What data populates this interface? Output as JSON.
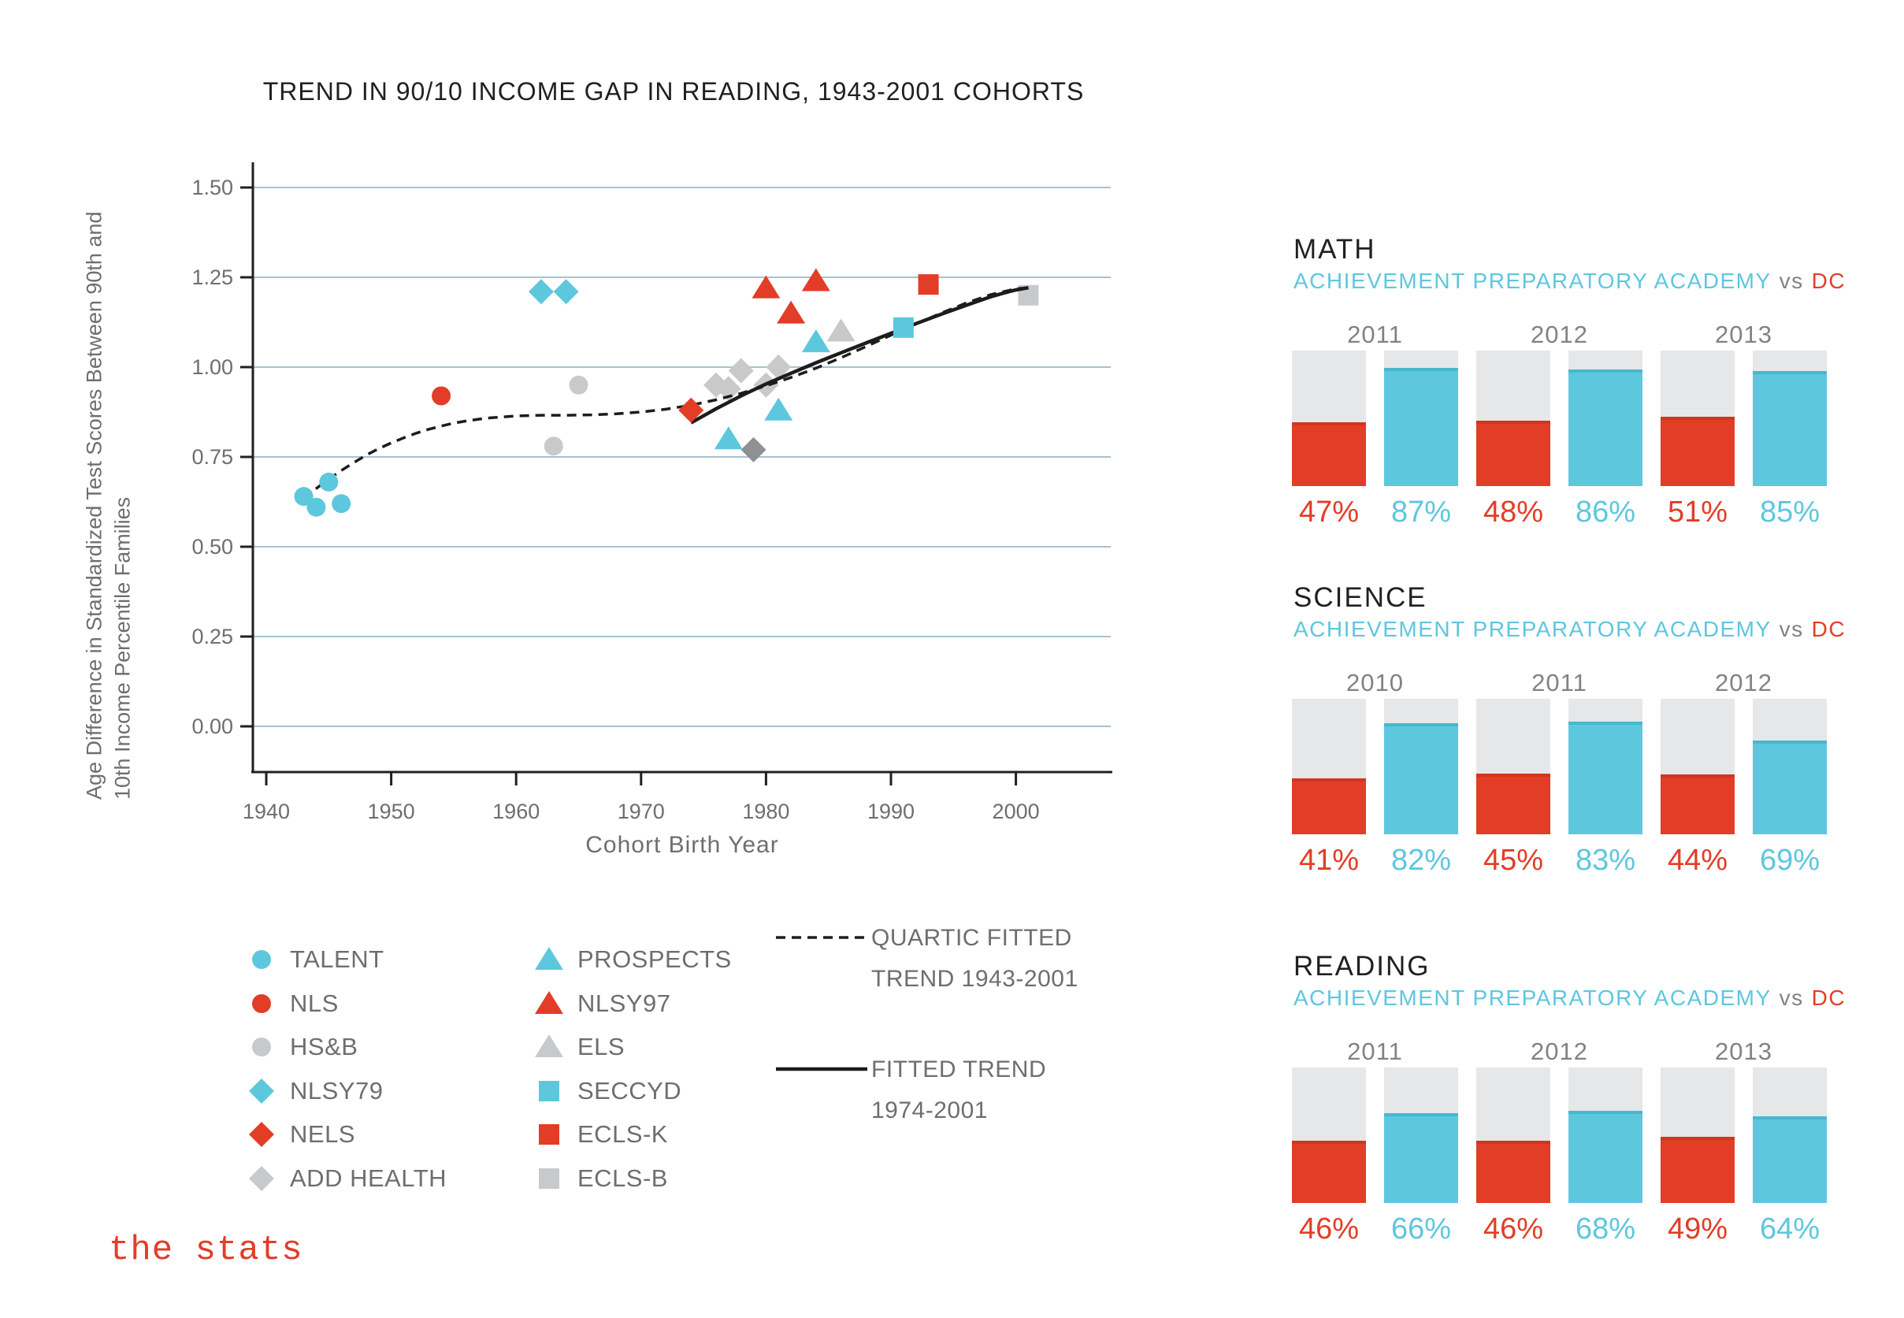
{
  "logo": {
    "text": "the stats"
  },
  "colors": {
    "red": "#e23d27",
    "blue": "#5dc7de",
    "light_gray": "#c8c9cb",
    "dark_gray": "#8f9093",
    "bar_background": "#e5e7e9",
    "gridline": "#a8c2cc",
    "axis_black": "#231f20",
    "label_gray": "#6d6e71",
    "year_gray": "#808285"
  },
  "scatter_legend": {
    "column1": [
      {
        "label": "TALENT",
        "marker": "circle",
        "color_key": "blue"
      },
      {
        "label": "NLS",
        "marker": "circle",
        "color_key": "red"
      },
      {
        "label": "HS&B",
        "marker": "circle",
        "color_key": "light_gray"
      },
      {
        "label": "NLSY79",
        "marker": "diamond",
        "color_key": "blue"
      },
      {
        "label": "NELS",
        "marker": "diamond",
        "color_key": "red"
      },
      {
        "label": "ADD HEALTH",
        "marker": "diamond",
        "color_key": "light_gray"
      }
    ],
    "column2": [
      {
        "label": "PROSPECTS",
        "marker": "triangle",
        "color_key": "blue"
      },
      {
        "label": "NLSY97",
        "marker": "triangle",
        "color_key": "red"
      },
      {
        "label": "ELS",
        "marker": "triangle",
        "color_key": "light_gray"
      },
      {
        "label": "SECCYD",
        "marker": "square",
        "color_key": "blue"
      },
      {
        "label": "ECLS-K",
        "marker": "square",
        "color_key": "red"
      },
      {
        "label": "ECLS-B",
        "marker": "square",
        "color_key": "light_gray"
      }
    ],
    "trend_entries": [
      {
        "style": "dashed",
        "line1": "QUARTIC FITTED",
        "line2": "TREND 1943-2001"
      },
      {
        "style": "solid",
        "line1": "FITTED TREND",
        "line2": "1974-2001"
      }
    ]
  },
  "chart_data": [
    {
      "type": "scatter",
      "title": "TREND IN 90/10 INCOME GAP IN READING, 1943-2001 COHORTS",
      "xlabel": "Cohort Birth Year",
      "ylabel_line1": "Age Difference in Standardized Test Scores Between 90th and",
      "ylabel_line2": "10th Income Percentile Families",
      "xlim": [
        1939,
        2008
      ],
      "ylim": [
        0,
        1.5
      ],
      "x_ticks": [
        1940,
        1950,
        1960,
        1970,
        1980,
        1990,
        2000
      ],
      "y_tick_labels": [
        "1.50",
        "1.25",
        "1.00",
        "0.75",
        "0.50",
        "0.25",
        "0.00"
      ],
      "grid": true,
      "legend_position": "below",
      "series": [
        {
          "name": "TALENT",
          "marker": "circle",
          "color_key": "blue",
          "points": [
            [
              1943,
              0.64
            ],
            [
              1944,
              0.61
            ],
            [
              1945,
              0.68
            ],
            [
              1946,
              0.62
            ]
          ]
        },
        {
          "name": "NLS",
          "marker": "circle",
          "color_key": "red",
          "points": [
            [
              1954,
              0.92
            ]
          ]
        },
        {
          "name": "HS&B",
          "marker": "circle",
          "color_key": "light_gray",
          "points": [
            [
              1963,
              0.78
            ],
            [
              1965,
              0.95
            ]
          ]
        },
        {
          "name": "NLSY79",
          "marker": "diamond",
          "color_key": "blue",
          "points": [
            [
              1962,
              1.21
            ],
            [
              1964,
              1.21
            ]
          ]
        },
        {
          "name": "NELS",
          "marker": "diamond",
          "color_key": "red",
          "points": [
            [
              1974,
              0.88
            ]
          ]
        },
        {
          "name": "ADD HEALTH",
          "marker": "diamond",
          "color_key": "light_gray",
          "points": [
            [
              1976,
              0.95
            ],
            [
              1977,
              0.94
            ],
            [
              1978,
              0.99
            ],
            [
              1980,
              0.95
            ],
            [
              1981,
              1.0
            ]
          ]
        },
        {
          "name": "ADD HEALTH",
          "marker": "diamond",
          "color_key": "dark_gray",
          "in_legend": false,
          "points": [
            [
              1979,
              0.77
            ]
          ]
        },
        {
          "name": "PROSPECTS",
          "marker": "triangle",
          "color_key": "blue",
          "points": [
            [
              1977,
              0.8
            ],
            [
              1981,
              0.88
            ],
            [
              1984,
              1.07
            ]
          ]
        },
        {
          "name": "NLSY97",
          "marker": "triangle",
          "color_key": "red",
          "points": [
            [
              1980,
              1.22
            ],
            [
              1982,
              1.15
            ],
            [
              1984,
              1.24
            ]
          ]
        },
        {
          "name": "ELS",
          "marker": "triangle",
          "color_key": "light_gray",
          "points": [
            [
              1986,
              1.1
            ]
          ]
        },
        {
          "name": "SECCYD",
          "marker": "square",
          "color_key": "blue",
          "points": [
            [
              1991,
              1.11
            ]
          ]
        },
        {
          "name": "ECLS-K",
          "marker": "square",
          "color_key": "red",
          "points": [
            [
              1993,
              1.23
            ]
          ]
        },
        {
          "name": "ECLS-B",
          "marker": "square",
          "color_key": "light_gray",
          "points": [
            [
              2001,
              1.2
            ]
          ]
        }
      ],
      "trends": [
        {
          "name": "QUARTIC FITTED TREND 1943-2001",
          "style": "dashed",
          "points": [
            [
              1943,
              0.633
            ],
            [
              1944,
              0.662
            ],
            [
              1945,
              0.688
            ],
            [
              1946,
              0.712
            ],
            [
              1947,
              0.734
            ],
            [
              1948,
              0.755
            ],
            [
              1949,
              0.773
            ],
            [
              1950,
              0.789
            ],
            [
              1951,
              0.803
            ],
            [
              1952,
              0.816
            ],
            [
              1953,
              0.827
            ],
            [
              1954,
              0.836
            ],
            [
              1955,
              0.844
            ],
            [
              1956,
              0.85
            ],
            [
              1957,
              0.855
            ],
            [
              1958,
              0.859
            ],
            [
              1960,
              0.864
            ],
            [
              1962,
              0.866
            ],
            [
              1964,
              0.866
            ],
            [
              1966,
              0.867
            ],
            [
              1968,
              0.87
            ],
            [
              1970,
              0.875
            ],
            [
              1972,
              0.883
            ],
            [
              1974,
              0.894
            ],
            [
              1976,
              0.909
            ],
            [
              1978,
              0.927
            ],
            [
              1980,
              0.948
            ],
            [
              1982,
              0.971
            ],
            [
              1984,
              0.997
            ],
            [
              1986,
              1.026
            ],
            [
              1988,
              1.057
            ],
            [
              1990,
              1.089
            ],
            [
              1992,
              1.12
            ],
            [
              1994,
              1.15
            ],
            [
              1996,
              1.178
            ],
            [
              1998,
              1.202
            ],
            [
              2000,
              1.218
            ],
            [
              2001,
              1.221
            ]
          ]
        },
        {
          "name": "FITTED TREND 1974-2001",
          "style": "solid",
          "points": [
            [
              1974,
              0.845
            ],
            [
              1976,
              0.884
            ],
            [
              1978,
              0.92
            ],
            [
              1980,
              0.953
            ],
            [
              1982,
              0.983
            ],
            [
              1984,
              1.012
            ],
            [
              1986,
              1.04
            ],
            [
              1988,
              1.067
            ],
            [
              1990,
              1.094
            ],
            [
              1992,
              1.121
            ],
            [
              1994,
              1.147
            ],
            [
              1996,
              1.172
            ],
            [
              1998,
              1.196
            ],
            [
              1999,
              1.206
            ],
            [
              2000,
              1.215
            ],
            [
              2001,
              1.221
            ]
          ]
        }
      ]
    },
    {
      "type": "bar",
      "section": "MATH",
      "subtitle": {
        "school": "ACHIEVEMENT PREPARATORY ACADEMY",
        "vs": "vs",
        "district": "DC"
      },
      "categories": [
        "2011",
        "2012",
        "2013"
      ],
      "series": [
        {
          "name": "DC",
          "color_key": "red",
          "values": [
            47,
            48,
            51
          ]
        },
        {
          "name": "ACHIEVEMENT PREPARATORY ACADEMY",
          "color_key": "blue",
          "values": [
            87,
            86,
            85
          ]
        }
      ],
      "ylim": [
        0,
        100
      ],
      "value_suffix": "%"
    },
    {
      "type": "bar",
      "section": "SCIENCE",
      "subtitle": {
        "school": "ACHIEVEMENT PREPARATORY ACADEMY",
        "vs": "vs",
        "district": "DC"
      },
      "categories": [
        "2010",
        "2011",
        "2012"
      ],
      "series": [
        {
          "name": "DC",
          "color_key": "red",
          "values": [
            41,
            45,
            44
          ]
        },
        {
          "name": "ACHIEVEMENT PREPARATORY ACADEMY",
          "color_key": "blue",
          "values": [
            82,
            83,
            69
          ]
        }
      ],
      "ylim": [
        0,
        100
      ],
      "value_suffix": "%"
    },
    {
      "type": "bar",
      "section": "READING",
      "subtitle": {
        "school": "ACHIEVEMENT PREPARATORY ACADEMY",
        "vs": "vs",
        "district": "DC"
      },
      "categories": [
        "2011",
        "2012",
        "2013"
      ],
      "series": [
        {
          "name": "DC",
          "color_key": "red",
          "values": [
            46,
            46,
            49
          ]
        },
        {
          "name": "ACHIEVEMENT PREPARATORY ACADEMY",
          "color_key": "blue",
          "values": [
            66,
            68,
            64
          ]
        }
      ],
      "ylim": [
        0,
        100
      ],
      "value_suffix": "%"
    }
  ]
}
